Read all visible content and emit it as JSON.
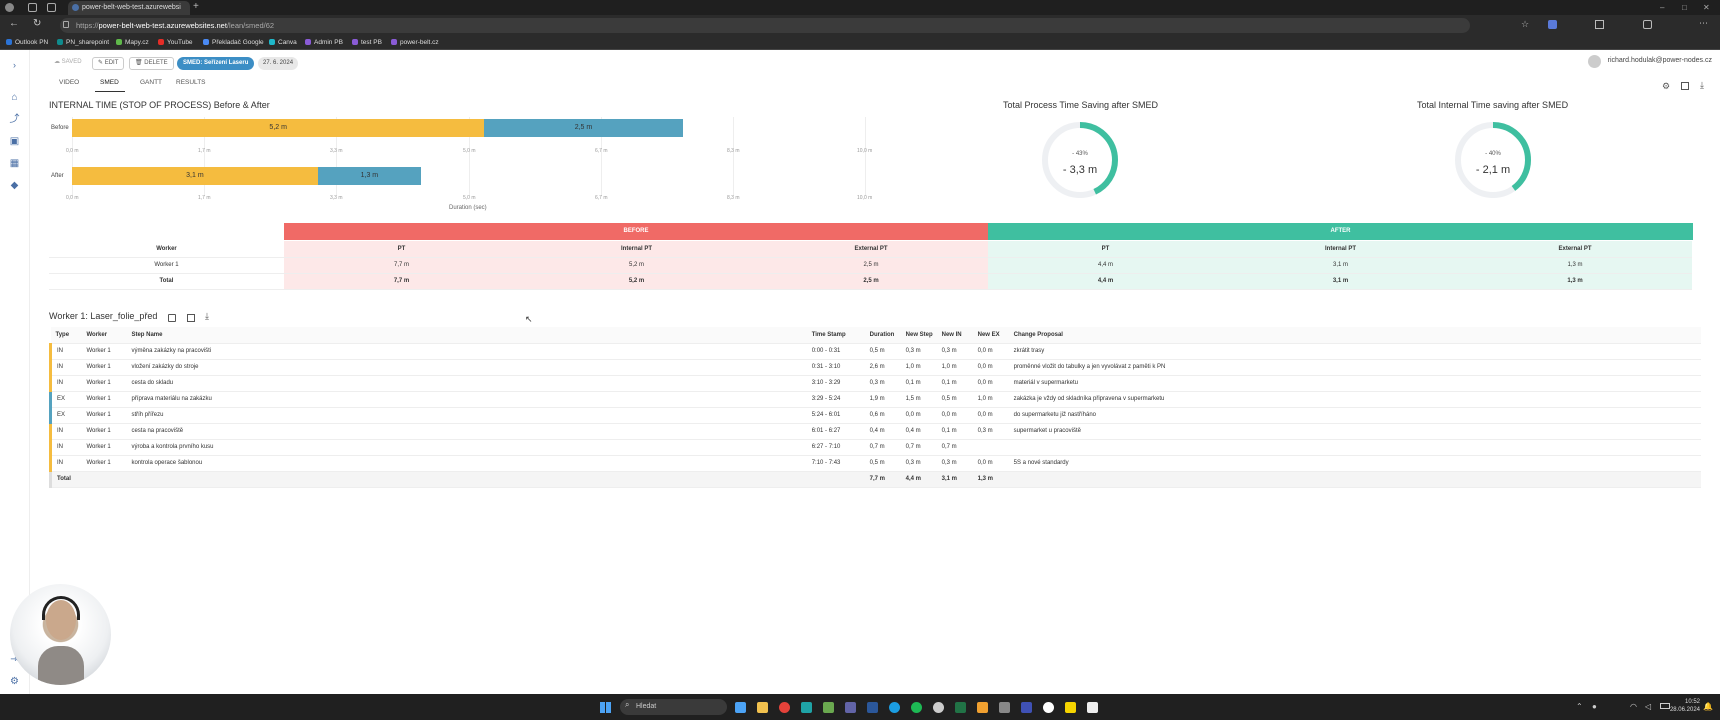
{
  "browser": {
    "tab_title": "power-belt-web-test.azurewebsi",
    "url_prefix": "https://",
    "url_host": "power-belt-web-test.azurewebsites.net",
    "url_path": "/lean/smed/62",
    "bookmarks": [
      "Outlook PN",
      "PN_sharepoint",
      "Mapy.cz",
      "YouTube",
      "Překladač Google",
      "Canva",
      "Admin PB",
      "test PB",
      "power-belt.cz"
    ]
  },
  "toolbar": {
    "saved": "SAVED",
    "edit": "EDIT",
    "delete": "DELETE",
    "chip": "SMED: Seřízení Laseru",
    "date": "27. 6. 2024"
  },
  "tabs": [
    "VIDEO",
    "SMED",
    "GANTT",
    "RESULTS"
  ],
  "user": "richard.hodulak@power-nodes.cz",
  "internal_chart": {
    "title": "INTERNAL TIME (STOP OF PROCESS) Before & After",
    "xlabel": "Duration (sec)",
    "rows": [
      {
        "label": "Before",
        "internal": 5.2,
        "external": 2.5,
        "internal_text": "5,2 m",
        "external_text": "2,5 m",
        "ticks": [
          "0,0 m",
          "1,7 m",
          "3,3 m",
          "5,0 m",
          "6,7 m",
          "8,3 m",
          "10,0 m"
        ]
      },
      {
        "label": "After",
        "internal": 3.1,
        "external": 1.3,
        "internal_text": "3,1 m",
        "external_text": "1,3 m",
        "ticks": [
          "0,0 m",
          "1,7 m",
          "3,3 m",
          "5,0 m",
          "6,7 m",
          "8,3 m",
          "10,0 m"
        ]
      }
    ],
    "xmax": 10,
    "colors": {
      "internal": "#f5bc3f",
      "external": "#55a2bf"
    }
  },
  "donuts": [
    {
      "title": "Total Process Time Saving after SMED",
      "pct": "- 43%",
      "value": "- 3,3 m",
      "fraction": 0.43
    },
    {
      "title": "Total Internal Time saving after SMED",
      "pct": "- 40%",
      "value": "- 2,1 m",
      "fraction": 0.4
    }
  ],
  "summary": {
    "before": "BEFORE",
    "after": "AFTER",
    "headers": [
      "Worker",
      "PT",
      "Internal PT",
      "External PT",
      "PT",
      "Internal PT",
      "External PT"
    ],
    "rows": [
      [
        "Worker 1",
        "7,7 m",
        "5,2 m",
        "2,5 m",
        "4,4 m",
        "3,1 m",
        "1,3 m"
      ],
      [
        "Total",
        "7,7 m",
        "5,2 m",
        "2,5 m",
        "4,4 m",
        "3,1 m",
        "1,3 m"
      ]
    ]
  },
  "steps": {
    "title": "Worker 1: Laser_folie_před",
    "headers": [
      "Type",
      "Worker",
      "Step Name",
      "Time Stamp",
      "Duration",
      "New Step",
      "New IN",
      "New EX",
      "Change Proposal"
    ],
    "rows": [
      [
        "IN",
        "Worker 1",
        "výměna zakázky na pracovišti",
        "0:00 - 0:31",
        "0,5 m",
        "0,3 m",
        "0,3 m",
        "0,0 m",
        "zkrátit trasy"
      ],
      [
        "IN",
        "Worker 1",
        "vložení zakázky do stroje",
        "0:31 - 3:10",
        "2,6 m",
        "1,0 m",
        "1,0 m",
        "0,0 m",
        "proměnné vložit do tabulky a jen vyvolávat z paměti k PN"
      ],
      [
        "IN",
        "Worker 1",
        "cesta do skladu",
        "3:10 - 3:29",
        "0,3 m",
        "0,1 m",
        "0,1 m",
        "0,0 m",
        "materiál v supermarketu"
      ],
      [
        "EX",
        "Worker 1",
        "příprava materiálu na zakázku",
        "3:29 - 5:24",
        "1,9 m",
        "1,5 m",
        "0,5 m",
        "1,0 m",
        "zakázka je vždy od skladníka připravena v supermarketu"
      ],
      [
        "EX",
        "Worker 1",
        "stříh přířezu",
        "5:24 - 6:01",
        "0,6 m",
        "0,0 m",
        "0,0 m",
        "0,0 m",
        "do supermarketu již nastříháno"
      ],
      [
        "IN",
        "Worker 1",
        "cesta na pracoviště",
        "6:01 - 6:27",
        "0,4 m",
        "0,4 m",
        "0,1 m",
        "0,3 m",
        "supermarket u pracoviště"
      ],
      [
        "IN",
        "Worker 1",
        "výroba a kontrola prvního kusu",
        "6:27 - 7:10",
        "0,7 m",
        "0,7 m",
        "0,7 m",
        "",
        ""
      ],
      [
        "IN",
        "Worker 1",
        "kontrola operace šablonou",
        "7:10 - 7:43",
        "0,5 m",
        "0,3 m",
        "0,3 m",
        "0,0 m",
        "5S a nové standardy"
      ]
    ],
    "total": [
      "Total",
      "",
      "",
      "",
      "7,7 m",
      "4,4 m",
      "3,1 m",
      "1,3 m",
      ""
    ]
  },
  "taskbar": {
    "search": "Hledat",
    "time": "10:52",
    "date": "28.06.2024"
  }
}
